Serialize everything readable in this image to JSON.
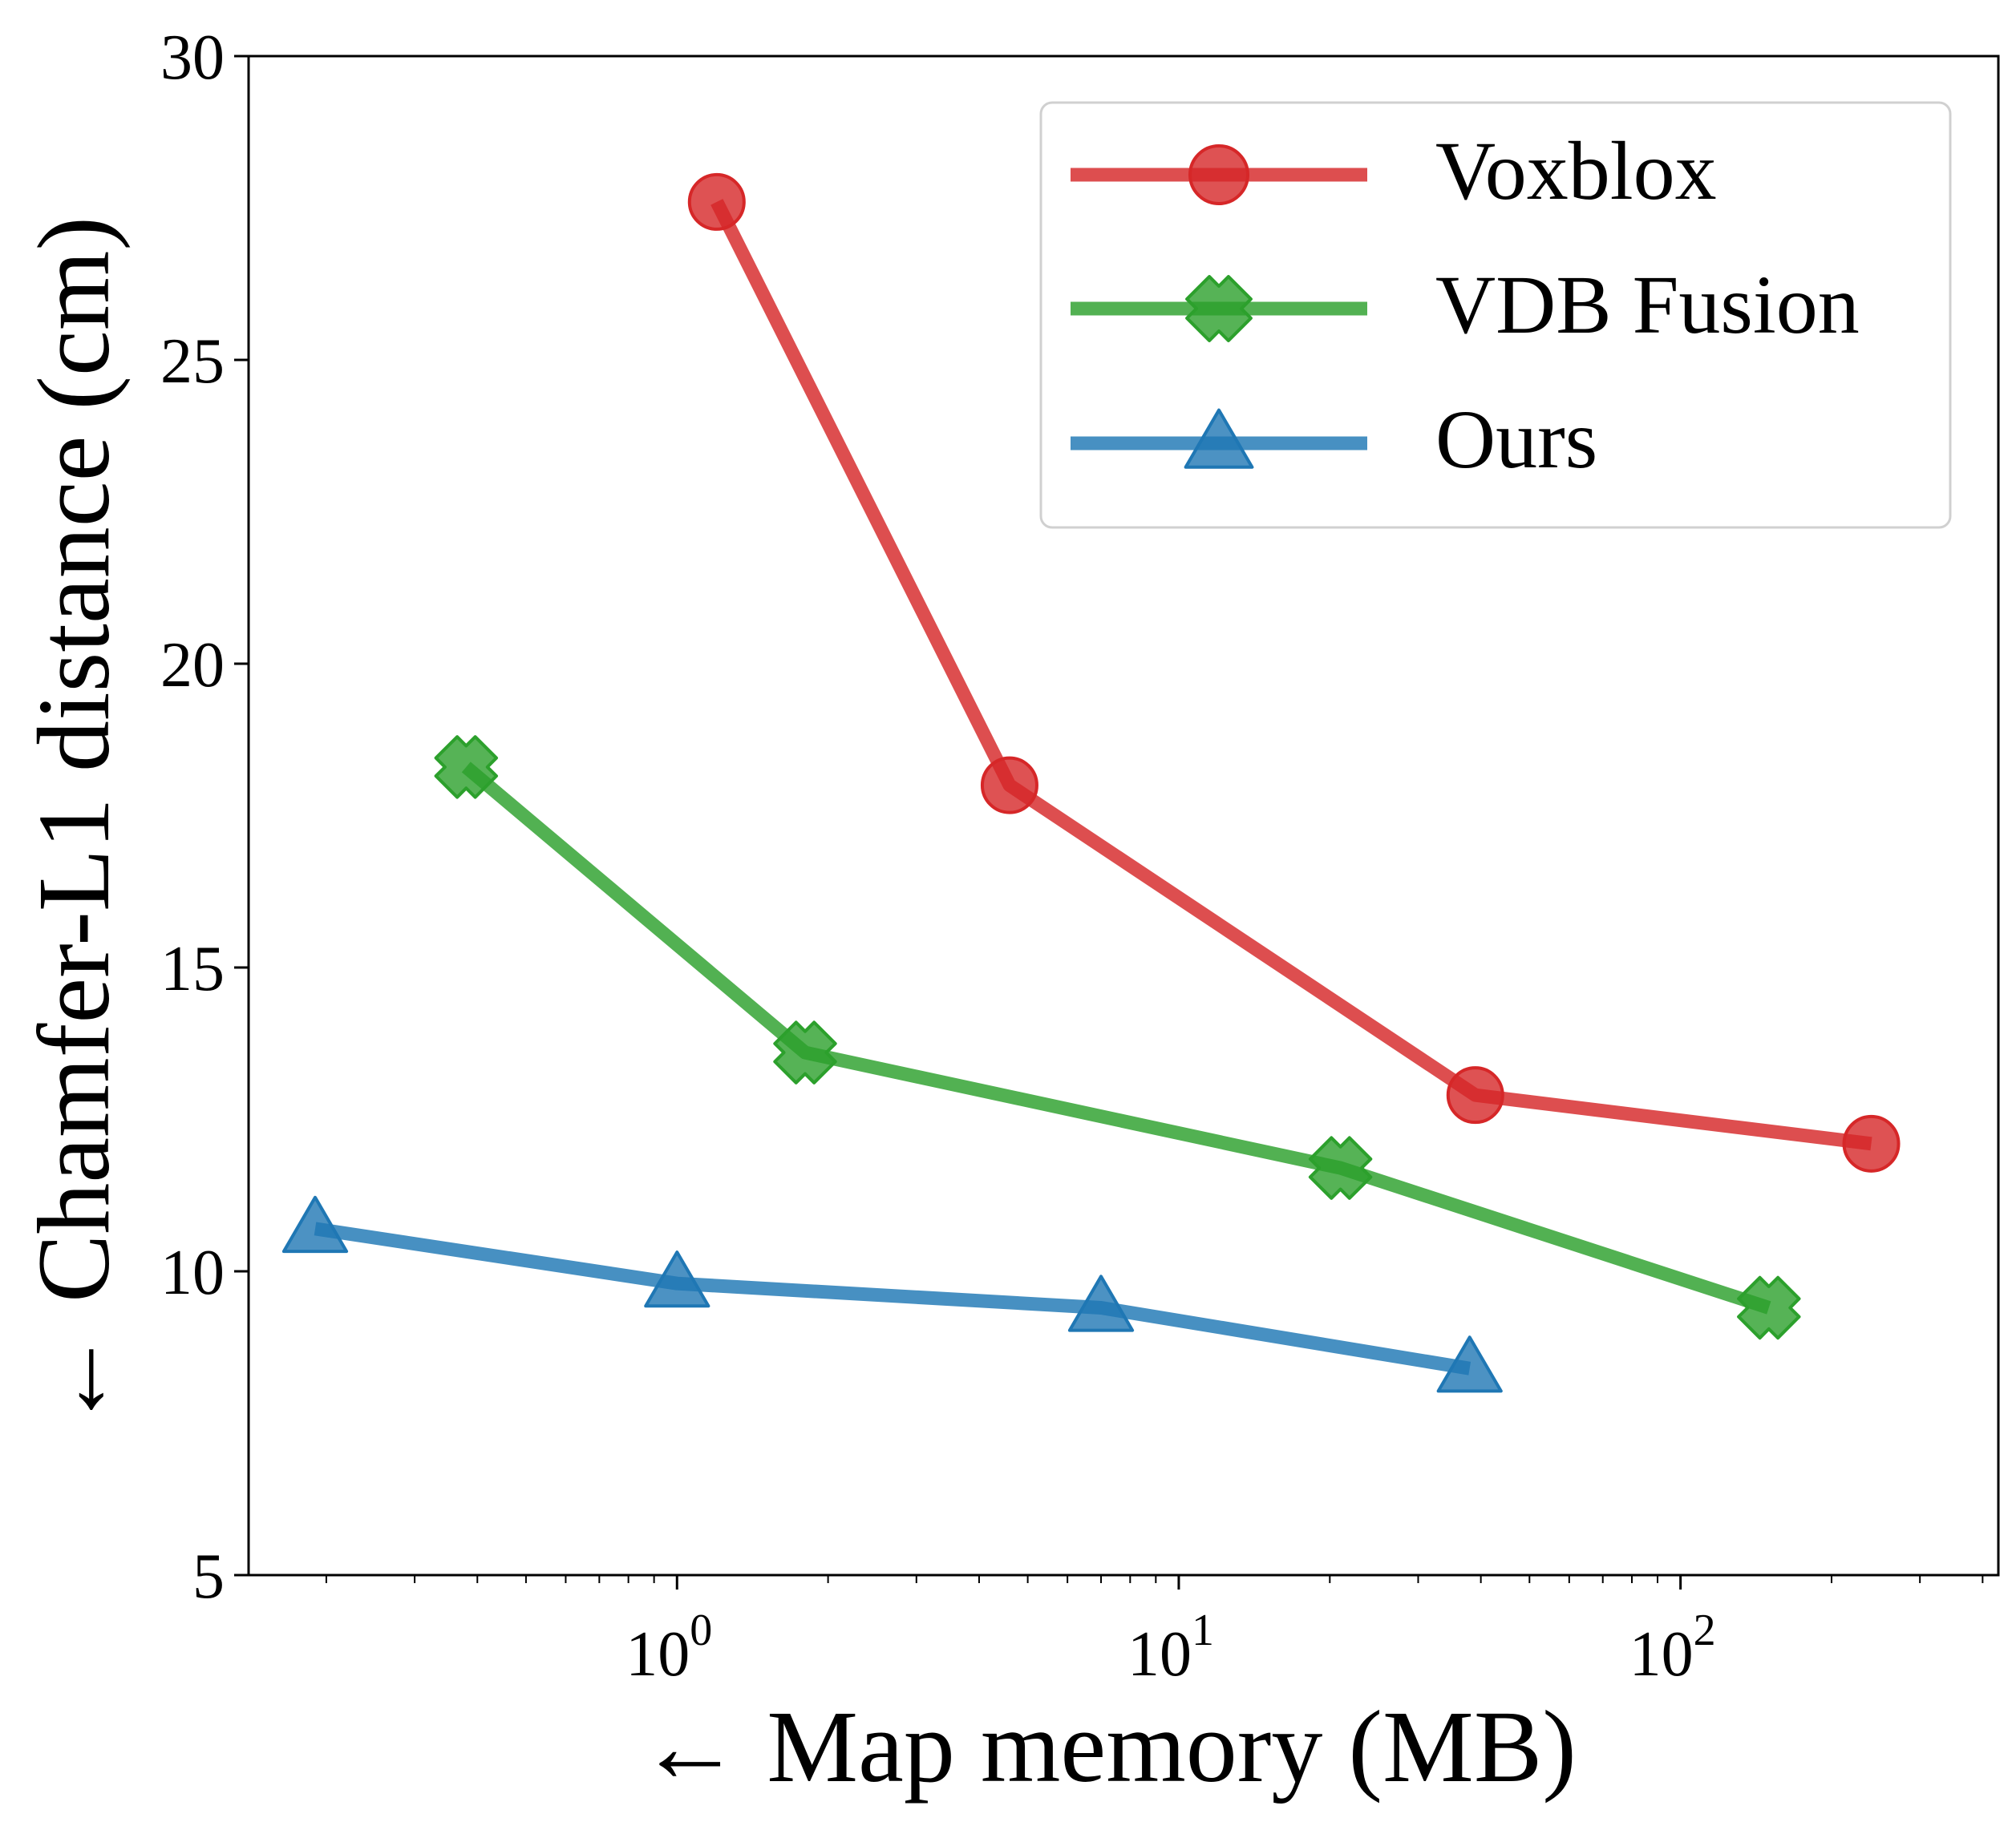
{
  "chart_data": {
    "type": "line",
    "title": "",
    "xlabel": "← Map memory (MB)",
    "ylabel": "← Chamfer-L1 distance (cm)",
    "xscale": "log",
    "xlim": [
      0.14,
      430
    ],
    "ylim": [
      5,
      30
    ],
    "yticks": [
      5,
      10,
      15,
      20,
      25,
      30
    ],
    "xticks": [
      {
        "value": 1,
        "base": "10",
        "exp": "0"
      },
      {
        "value": 10,
        "base": "10",
        "exp": "1"
      },
      {
        "value": 100,
        "base": "10",
        "exp": "2"
      }
    ],
    "grid": false,
    "legend_position": "top-right",
    "series": [
      {
        "name": "Voxblox",
        "color": "#d62728",
        "marker": "circle",
        "x": [
          1.2,
          4.6,
          39,
          240
        ],
        "y": [
          27.6,
          18.0,
          12.9,
          12.1
        ]
      },
      {
        "name": "VDB Fusion",
        "color": "#2ca02c",
        "marker": "x",
        "x": [
          0.38,
          1.8,
          21,
          150
        ],
        "y": [
          18.3,
          13.6,
          11.7,
          9.4
        ]
      },
      {
        "name": "Ours",
        "color": "#1f77b4",
        "marker": "triangle",
        "x": [
          0.19,
          1.0,
          7.0,
          38
        ],
        "y": [
          10.7,
          9.8,
          9.4,
          8.4
        ]
      }
    ]
  }
}
